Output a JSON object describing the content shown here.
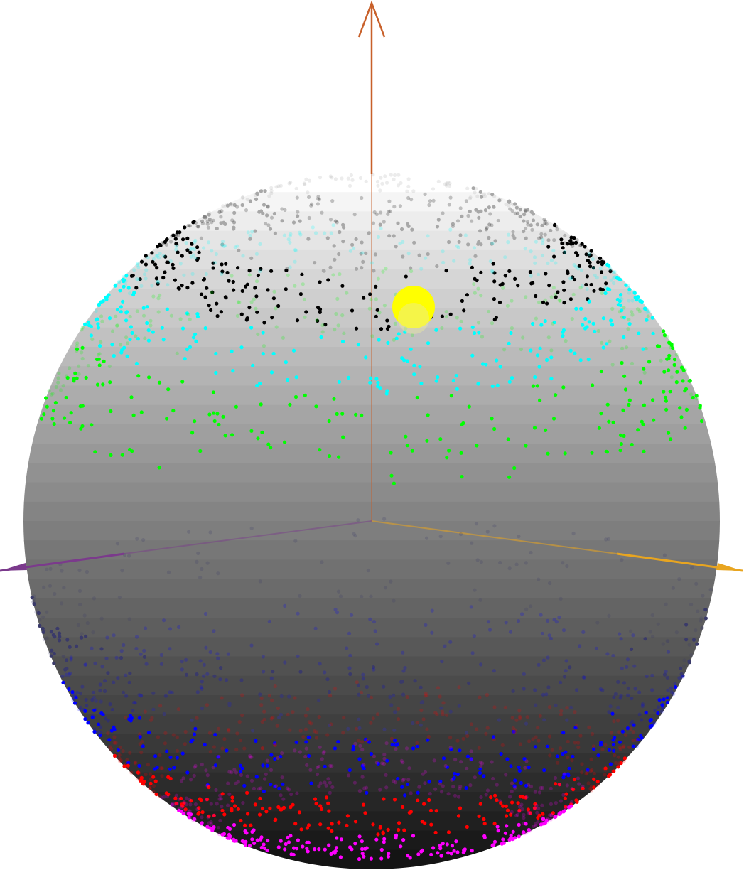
{
  "scene": {
    "background": "#ffffff",
    "sphere": {
      "top_color": "#ffffff",
      "bottom_color": "#141414",
      "bands": 36
    },
    "axes": [
      {
        "name": "z-axis",
        "color": "#c8602a",
        "arrow": true
      },
      {
        "name": "x-axis",
        "color": "#7b3a8c",
        "arrow": true
      },
      {
        "name": "y-axis",
        "color": "#e8a520",
        "arrow": true
      }
    ],
    "marker": {
      "name": "yellow-marker",
      "color": "#ffff00"
    },
    "point_bands": [
      {
        "name": "gray-points",
        "color": "#a8a8a8",
        "count": 220,
        "lat_min": 58,
        "lat_max": 72
      },
      {
        "name": "black-points",
        "color": "#000000",
        "count": 320,
        "lat_min": 46,
        "lat_max": 58
      },
      {
        "name": "cyan-points",
        "color": "#00ffff",
        "count": 360,
        "lat_min": 34,
        "lat_max": 46
      },
      {
        "name": "green-points",
        "color": "#00ff00",
        "count": 360,
        "lat_min": 18,
        "lat_max": 34
      },
      {
        "name": "navy-points",
        "color": "#3a3a6a",
        "count": 260,
        "lat_min": -26,
        "lat_max": -12
      },
      {
        "name": "blue-points",
        "color": "#0000ff",
        "count": 380,
        "lat_min": -40,
        "lat_max": -26
      },
      {
        "name": "red-points",
        "color": "#ff0000",
        "count": 400,
        "lat_min": -52,
        "lat_max": -40
      },
      {
        "name": "magenta-points",
        "color": "#ff00ff",
        "count": 420,
        "lat_min": -64,
        "lat_max": -52
      }
    ]
  }
}
